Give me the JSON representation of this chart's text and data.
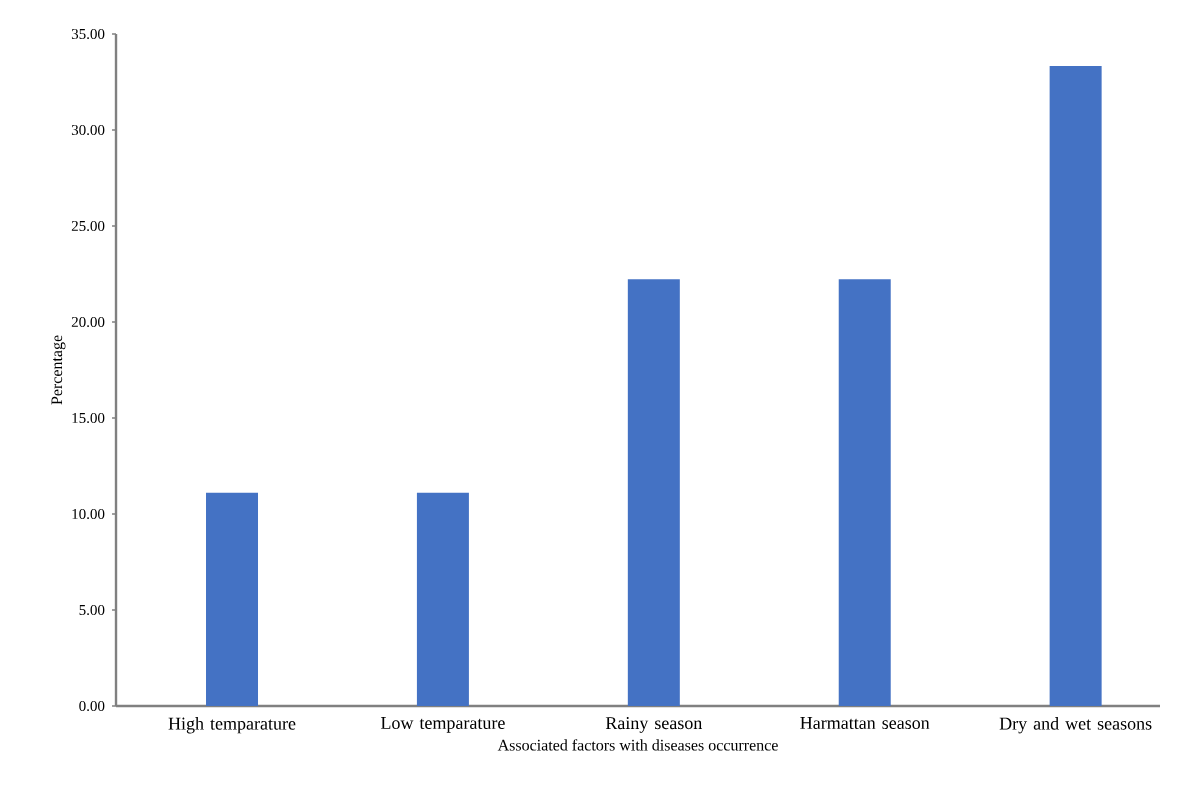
{
  "chart_data": {
    "type": "bar",
    "xlabel": "Associated factors with diseases occurrence",
    "ylabel": "Percentage",
    "categories": [
      "High temparature",
      "Low temparature",
      "Rainy season",
      "Harmattan season",
      "Dry and wet seasons"
    ],
    "values": [
      11.11,
      11.11,
      22.22,
      22.22,
      33.33
    ],
    "color": "#4472c4",
    "ylim": [
      0,
      35
    ],
    "yticks": [
      {
        "value": 0,
        "label": "0.00"
      },
      {
        "value": 5,
        "label": "5.00"
      },
      {
        "value": 10,
        "label": "10.00"
      },
      {
        "value": 15,
        "label": "15.00"
      },
      {
        "value": 20,
        "label": "20.00"
      },
      {
        "value": 25,
        "label": "25.00"
      },
      {
        "value": 30,
        "label": "30.00"
      },
      {
        "value": 35,
        "label": "35.00"
      }
    ]
  }
}
